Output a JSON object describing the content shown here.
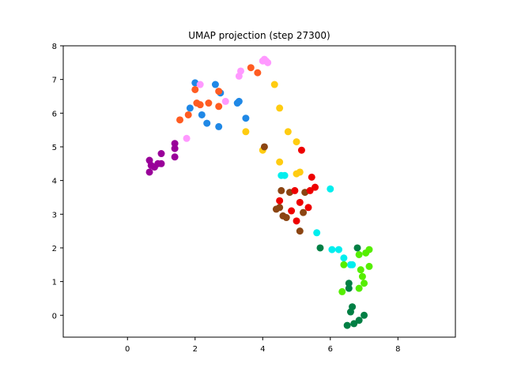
{
  "chart_data": {
    "type": "scatter",
    "title": "UMAP projection (step 27300)",
    "xlabel": "",
    "ylabel": "",
    "xlim": [
      -1.9,
      9.7
    ],
    "ylim": [
      -0.65,
      8.0
    ],
    "xticks": [
      0,
      2,
      4,
      6,
      8
    ],
    "yticks": [
      0,
      1,
      2,
      3,
      4,
      5,
      6,
      7,
      8
    ],
    "grid": false,
    "series": [
      {
        "color": "#990099",
        "points": [
          [
            0.65,
            4.6
          ],
          [
            0.7,
            4.45
          ],
          [
            0.65,
            4.25
          ],
          [
            0.8,
            4.4
          ],
          [
            0.9,
            4.5
          ],
          [
            1.0,
            4.8
          ],
          [
            1.4,
            5.1
          ],
          [
            1.4,
            4.95
          ],
          [
            1.4,
            4.7
          ],
          [
            1.0,
            4.5
          ]
        ]
      },
      {
        "color": "#1f88e6",
        "points": [
          [
            2.0,
            6.9
          ],
          [
            1.85,
            6.15
          ],
          [
            2.2,
            5.95
          ],
          [
            2.35,
            5.7
          ],
          [
            2.6,
            6.85
          ],
          [
            2.75,
            6.6
          ],
          [
            2.7,
            5.6
          ],
          [
            3.25,
            6.3
          ],
          [
            3.3,
            6.35
          ],
          [
            3.5,
            5.85
          ]
        ]
      },
      {
        "color": "#ff5c22",
        "points": [
          [
            1.55,
            5.8
          ],
          [
            1.8,
            5.95
          ],
          [
            2.0,
            6.7
          ],
          [
            2.05,
            6.3
          ],
          [
            2.15,
            6.25
          ],
          [
            2.4,
            6.3
          ],
          [
            2.7,
            6.2
          ],
          [
            2.7,
            6.65
          ],
          [
            3.65,
            7.35
          ],
          [
            3.85,
            7.2
          ]
        ]
      },
      {
        "color": "#ff99ff",
        "points": [
          [
            1.75,
            5.25
          ],
          [
            2.15,
            6.85
          ],
          [
            2.9,
            6.35
          ],
          [
            3.3,
            7.1
          ],
          [
            3.35,
            7.25
          ],
          [
            4.0,
            7.55
          ],
          [
            4.05,
            7.6
          ],
          [
            4.1,
            7.55
          ],
          [
            4.15,
            7.5
          ]
        ]
      },
      {
        "color": "#ffcc11",
        "points": [
          [
            3.5,
            5.45
          ],
          [
            4.0,
            4.9
          ],
          [
            4.35,
            6.85
          ],
          [
            4.5,
            6.15
          ],
          [
            4.5,
            4.55
          ],
          [
            4.75,
            5.45
          ],
          [
            5.0,
            5.15
          ],
          [
            5.0,
            4.2
          ],
          [
            5.1,
            4.25
          ]
        ]
      },
      {
        "color": "#8b4513",
        "points": [
          [
            4.05,
            5.0
          ],
          [
            4.4,
            3.15
          ],
          [
            4.5,
            3.2
          ],
          [
            4.55,
            3.7
          ],
          [
            4.6,
            2.95
          ],
          [
            4.7,
            2.9
          ],
          [
            4.8,
            3.65
          ],
          [
            5.1,
            2.5
          ],
          [
            5.2,
            3.05
          ],
          [
            5.25,
            3.65
          ]
        ]
      },
      {
        "color": "#ee0000",
        "points": [
          [
            4.5,
            3.4
          ],
          [
            4.85,
            3.1
          ],
          [
            4.95,
            3.7
          ],
          [
            5.0,
            2.8
          ],
          [
            5.1,
            3.35
          ],
          [
            5.15,
            4.9
          ],
          [
            5.35,
            3.2
          ],
          [
            5.4,
            3.7
          ],
          [
            5.45,
            4.1
          ],
          [
            5.55,
            3.8
          ]
        ]
      },
      {
        "color": "#00eeee",
        "points": [
          [
            4.55,
            4.15
          ],
          [
            4.65,
            4.15
          ],
          [
            5.6,
            2.45
          ],
          [
            6.0,
            3.75
          ],
          [
            6.05,
            1.95
          ],
          [
            6.25,
            1.95
          ],
          [
            6.4,
            1.7
          ],
          [
            6.6,
            1.5
          ],
          [
            6.65,
            1.5
          ]
        ]
      },
      {
        "color": "#55ee00",
        "points": [
          [
            6.35,
            0.7
          ],
          [
            6.4,
            1.5
          ],
          [
            6.85,
            0.8
          ],
          [
            6.85,
            1.8
          ],
          [
            6.9,
            1.35
          ],
          [
            6.95,
            1.15
          ],
          [
            7.0,
            0.95
          ],
          [
            7.05,
            1.85
          ],
          [
            7.15,
            1.95
          ],
          [
            7.15,
            1.45
          ]
        ]
      },
      {
        "color": "#007f44",
        "points": [
          [
            5.7,
            2.0
          ],
          [
            6.5,
            -0.3
          ],
          [
            6.55,
            0.95
          ],
          [
            6.55,
            0.8
          ],
          [
            6.6,
            0.1
          ],
          [
            6.65,
            0.25
          ],
          [
            6.7,
            -0.25
          ],
          [
            6.85,
            -0.15
          ],
          [
            7.0,
            0.0
          ],
          [
            6.8,
            2.0
          ]
        ]
      }
    ]
  }
}
